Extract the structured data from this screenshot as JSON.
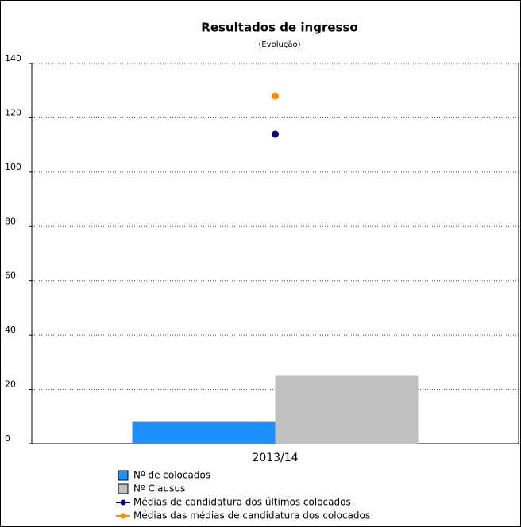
{
  "chart_data": {
    "type": "bar",
    "title": "Resultados de ingresso",
    "subtitle": "(Evolução)",
    "categories": [
      "2013/14"
    ],
    "series": [
      {
        "name": "Nº de colocados",
        "type": "bar",
        "color": "#1e90ff",
        "values": [
          8
        ]
      },
      {
        "name": "Nº Clausus",
        "type": "bar",
        "color": "#c0c0c0",
        "values": [
          25
        ]
      },
      {
        "name": "Médias de candidatura dos últimos colocados",
        "type": "line",
        "color": "#000080",
        "values": [
          114
        ]
      },
      {
        "name": "Médias das médias de candidatura dos colocados",
        "type": "line",
        "color": "#ff8c00",
        "values": [
          128
        ]
      }
    ],
    "ylim": [
      0,
      140
    ],
    "yticks": [
      0,
      20,
      40,
      60,
      80,
      100,
      120,
      140
    ],
    "grid": true,
    "legend": "bottom"
  }
}
